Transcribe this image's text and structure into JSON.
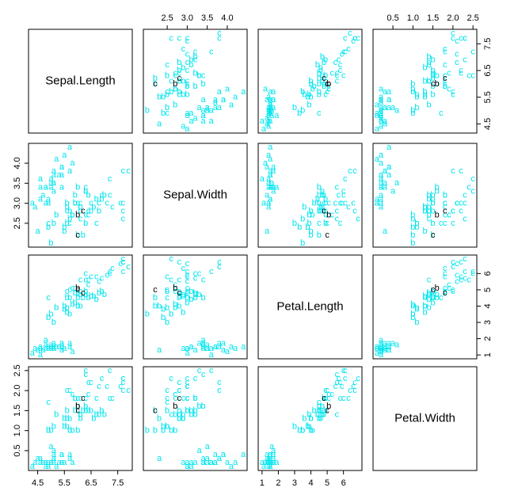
{
  "chart_data": {
    "type": "pairs",
    "variables": [
      {
        "name": "Sepal.Length",
        "lim": [
          4.3,
          7.9
        ],
        "ticks": [
          4.5,
          5.5,
          6.5,
          7.5
        ]
      },
      {
        "name": "Sepal.Width",
        "lim": [
          2.0,
          4.4
        ],
        "ticks": [
          2.5,
          {
            "value": 3,
            "label": "3.0"
          },
          3.5,
          {
            "value": 4,
            "label": "4.0"
          }
        ]
      },
      {
        "name": "Petal.Length",
        "lim": [
          1.0,
          6.9
        ],
        "ticks": [
          1,
          2,
          3,
          4,
          5,
          6
        ]
      },
      {
        "name": "Petal.Width",
        "lim": [
          0.1,
          2.5
        ],
        "ticks": [
          0.5,
          {
            "value": 1,
            "label": "1.0"
          },
          1.5,
          {
            "value": 2,
            "label": "2.0"
          },
          2.5
        ]
      }
    ],
    "series": [
      {
        "name": "a",
        "color": "#00e5ee",
        "values": [
          [
            5.1,
            3.5,
            1.4,
            0.2
          ],
          [
            4.9,
            3.0,
            1.4,
            0.2
          ],
          [
            4.7,
            3.2,
            1.3,
            0.2
          ],
          [
            4.6,
            3.1,
            1.5,
            0.2
          ],
          [
            5.0,
            3.6,
            1.4,
            0.2
          ],
          [
            5.4,
            3.9,
            1.7,
            0.4
          ],
          [
            4.6,
            3.4,
            1.4,
            0.3
          ],
          [
            5.0,
            3.4,
            1.5,
            0.2
          ],
          [
            4.4,
            2.9,
            1.4,
            0.2
          ],
          [
            4.9,
            3.1,
            1.5,
            0.1
          ],
          [
            5.4,
            3.7,
            1.5,
            0.2
          ],
          [
            4.8,
            3.4,
            1.6,
            0.2
          ],
          [
            4.8,
            3.0,
            1.4,
            0.1
          ],
          [
            4.3,
            3.0,
            1.1,
            0.1
          ],
          [
            5.8,
            4.0,
            1.2,
            0.2
          ],
          [
            5.7,
            4.4,
            1.5,
            0.4
          ],
          [
            5.4,
            3.9,
            1.3,
            0.4
          ],
          [
            5.1,
            3.5,
            1.4,
            0.3
          ],
          [
            5.7,
            3.8,
            1.7,
            0.3
          ],
          [
            5.1,
            3.8,
            1.5,
            0.3
          ],
          [
            5.4,
            3.4,
            1.7,
            0.2
          ],
          [
            5.1,
            3.7,
            1.5,
            0.4
          ],
          [
            4.6,
            3.6,
            1.0,
            0.2
          ],
          [
            5.1,
            3.3,
            1.7,
            0.5
          ],
          [
            4.8,
            3.4,
            1.9,
            0.2
          ],
          [
            5.2,
            4.1,
            1.5,
            0.1
          ],
          [
            5.5,
            4.2,
            1.4,
            0.2
          ],
          [
            4.5,
            2.3,
            1.3,
            0.3
          ],
          [
            5.0,
            3.5,
            1.6,
            0.6
          ],
          [
            5.3,
            3.7,
            1.5,
            0.2
          ]
        ]
      },
      {
        "name": "b",
        "color": "#00e5ee",
        "values": [
          [
            7.0,
            3.2,
            4.7,
            1.4
          ],
          [
            6.4,
            3.2,
            4.5,
            1.5
          ],
          [
            6.9,
            3.1,
            4.9,
            1.5
          ],
          [
            5.5,
            2.3,
            4.0,
            1.3
          ],
          [
            6.5,
            2.8,
            4.6,
            1.5
          ],
          [
            5.7,
            2.8,
            4.5,
            1.3
          ],
          [
            6.3,
            3.3,
            4.7,
            1.6
          ],
          [
            4.9,
            2.4,
            3.3,
            1.0
          ],
          [
            6.6,
            2.9,
            4.6,
            1.3
          ],
          [
            5.2,
            2.7,
            3.9,
            1.4
          ],
          [
            5.0,
            2.0,
            3.5,
            1.0
          ],
          [
            5.9,
            3.0,
            4.2,
            1.5
          ],
          [
            6.0,
            2.2,
            4.0,
            1.0
          ],
          [
            6.1,
            2.9,
            4.7,
            1.4
          ],
          [
            5.6,
            2.9,
            3.6,
            1.3
          ],
          [
            6.7,
            3.1,
            4.4,
            1.4
          ],
          [
            5.6,
            3.0,
            4.5,
            1.5
          ],
          [
            5.8,
            2.7,
            4.1,
            1.0
          ],
          [
            6.2,
            2.2,
            4.5,
            1.5
          ],
          [
            5.6,
            2.5,
            3.9,
            1.1
          ],
          [
            5.9,
            3.2,
            4.8,
            1.8
          ],
          [
            6.1,
            2.8,
            4.0,
            1.3
          ],
          [
            6.3,
            2.5,
            4.9,
            1.5
          ],
          [
            6.8,
            2.8,
            4.8,
            1.4
          ],
          [
            5.5,
            2.4,
            3.8,
            1.1
          ],
          [
            6.0,
            3.4,
            4.5,
            1.6
          ],
          [
            5.7,
            2.6,
            3.5,
            1.0
          ],
          [
            5.1,
            2.5,
            3.0,
            1.1
          ]
        ]
      },
      {
        "name": "c",
        "color": "#00e5ee",
        "values": [
          [
            6.3,
            3.3,
            6.0,
            2.5
          ],
          [
            5.8,
            2.7,
            5.1,
            1.9
          ],
          [
            7.1,
            3.0,
            5.9,
            2.1
          ],
          [
            6.5,
            3.0,
            5.8,
            2.2
          ],
          [
            7.6,
            3.0,
            6.6,
            2.1
          ],
          [
            4.9,
            2.5,
            4.5,
            1.7
          ],
          [
            7.3,
            2.9,
            6.3,
            1.8
          ],
          [
            6.7,
            2.5,
            5.8,
            1.8
          ],
          [
            7.2,
            3.6,
            6.1,
            2.5
          ],
          [
            6.4,
            2.7,
            5.3,
            1.9
          ],
          [
            6.8,
            3.0,
            5.5,
            2.1
          ],
          [
            5.7,
            2.5,
            5.0,
            2.0
          ],
          [
            7.7,
            3.8,
            6.7,
            2.2
          ],
          [
            7.7,
            2.6,
            6.9,
            2.3
          ],
          [
            6.9,
            3.2,
            5.7,
            2.3
          ],
          [
            5.6,
            2.8,
            4.9,
            2.0
          ],
          [
            7.7,
            2.8,
            6.7,
            2.0
          ],
          [
            6.3,
            2.7,
            4.9,
            1.8
          ],
          [
            7.2,
            3.2,
            6.0,
            1.8
          ],
          [
            6.1,
            3.0,
            4.9,
            1.8
          ],
          [
            7.9,
            3.8,
            6.4,
            2.0
          ],
          [
            6.4,
            2.8,
            5.6,
            2.2
          ],
          [
            6.1,
            2.6,
            5.6,
            1.4
          ],
          [
            7.7,
            3.0,
            6.1,
            2.3
          ],
          [
            6.3,
            3.4,
            5.6,
            2.4
          ],
          [
            6.0,
            3.0,
            4.8,
            1.8
          ],
          [
            5.9,
            3.0,
            5.1,
            1.8
          ]
        ]
      },
      {
        "name": "b",
        "color": "#000000",
        "values": [
          [
            6.0,
            2.7,
            5.1,
            1.6
          ]
        ]
      },
      {
        "name": "c",
        "color": "#000000",
        "values": [
          [
            6.0,
            2.2,
            5.0,
            1.5
          ],
          [
            6.2,
            2.8,
            4.8,
            1.8
          ]
        ]
      }
    ]
  }
}
